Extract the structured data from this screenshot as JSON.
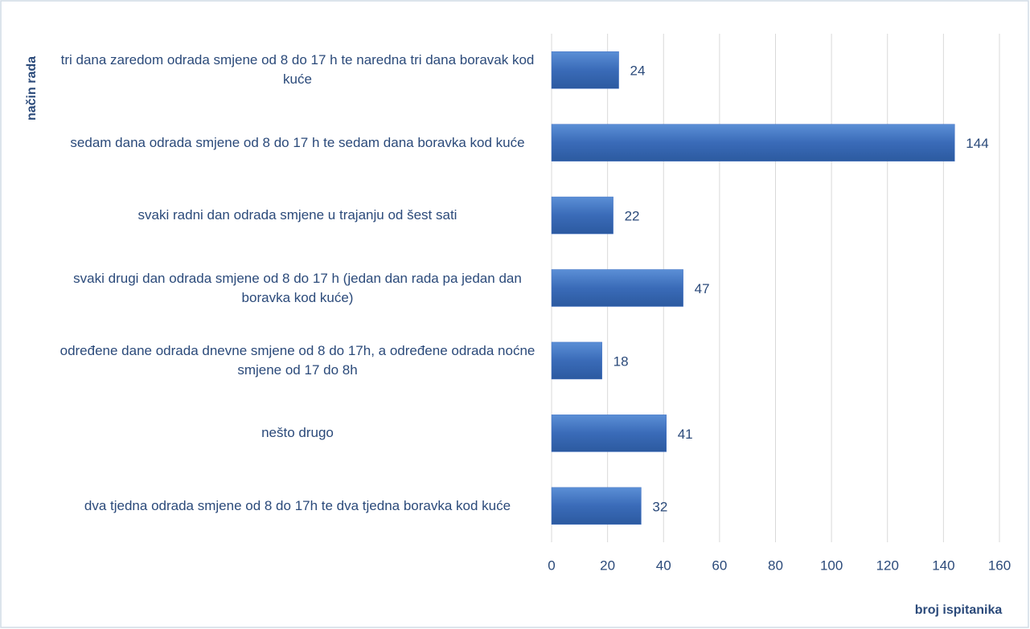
{
  "chart_data": {
    "type": "hbar",
    "y_axis_label": "način rada",
    "x_axis_label": "broj ispitanika",
    "categories": [
      "tri dana zaredom odrada smjene od 8 do 17 h te naredna tri dana boravak kod kuće",
      "sedam dana odrada smjene od 8 do 17 h te sedam dana boravka kod kuće",
      "svaki radni dan odrada smjene u trajanju od šest sati",
      "svaki drugi dan odrada smjene od 8 do 17 h (jedan dan rada pa jedan dan boravka kod kuće)",
      "određene dane odrada dnevne smjene od 8 do 17h, a određene odrada noćne smjene od 17 do 8h",
      "nešto drugo",
      "dva tjedna odrada smjene od 8 do 17h te dva tjedna boravka kod kuće"
    ],
    "values": [
      24,
      144,
      22,
      47,
      18,
      41,
      32
    ],
    "color": "#4472c4",
    "xlim": [
      0,
      160
    ],
    "xticks": [
      0,
      20,
      40,
      60,
      80,
      100,
      120,
      140,
      160
    ],
    "grid": true
  }
}
